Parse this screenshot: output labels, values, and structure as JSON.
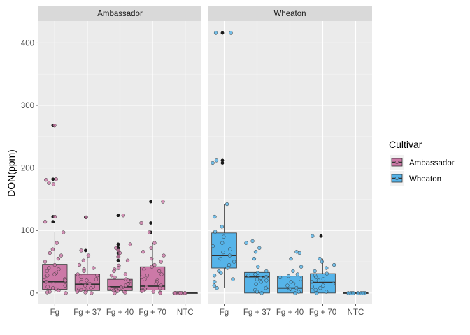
{
  "chart_data": {
    "type": "boxplot",
    "ylabel": "DON(ppm)",
    "xlabel": "",
    "ylim": [
      -18,
      435
    ],
    "yticks": [
      0,
      100,
      200,
      300,
      400
    ],
    "categories": [
      "Fg",
      "Fg + 37",
      "Fg + 40",
      "Fg + 70",
      "NTC"
    ],
    "legend": {
      "title": "Cultivar",
      "position": "right",
      "entries": [
        {
          "label": "Ambassador",
          "color": "#CC79A7"
        },
        {
          "label": "Wheaton",
          "color": "#56B4E9"
        }
      ]
    },
    "panels": [
      {
        "title": "Ambassador",
        "color": "#CC79A7",
        "boxes": [
          {
            "category": "Fg",
            "q1": 6,
            "median": 18,
            "q3": 46,
            "whisker_low": 0,
            "whisker_high": 98,
            "outliers": [
              268,
              268,
              182,
              182,
              122,
              122,
              114,
              114
            ],
            "points": [
              268,
              182,
              181,
              176,
              174,
              122,
              114,
              97,
              80,
              70,
              64,
              60,
              55,
              50,
              45,
              40,
              38,
              35,
              32,
              30,
              28,
              25,
              22,
              20,
              18,
              15,
              12,
              10,
              8,
              6,
              4,
              2,
              1,
              0
            ]
          },
          {
            "category": "Fg + 37",
            "q1": 4,
            "median": 14,
            "q3": 30,
            "whisker_low": 0,
            "whisker_high": 62,
            "outliers": [
              121,
              121,
              68,
              68
            ],
            "points": [
              121,
              68,
              60,
              52,
              45,
              40,
              38,
              35,
              30,
              28,
              25,
              22,
              20,
              18,
              15,
              12,
              10,
              8,
              6,
              5,
              4,
              3,
              2,
              1,
              0
            ]
          },
          {
            "category": "Fg + 40",
            "q1": 4,
            "median": 10,
            "q3": 22,
            "whisker_low": 0,
            "whisker_high": 44,
            "outliers": [
              124,
              124,
              78,
              78,
              72,
              72,
              68,
              68,
              64,
              64,
              58,
              58,
              52,
              52
            ],
            "points": [
              124,
              78,
              72,
              68,
              64,
              58,
              52,
              44,
              40,
              38,
              35,
              30,
              28,
              25,
              22,
              20,
              18,
              15,
              14,
              12,
              10,
              9,
              8,
              6,
              5,
              4,
              3,
              2,
              1,
              0
            ]
          },
          {
            "category": "Fg + 70",
            "q1": 5,
            "median": 11,
            "q3": 42,
            "whisker_low": 0,
            "whisker_high": 80,
            "outliers": [
              146,
              146,
              112,
              112,
              97,
              97
            ],
            "points": [
              146,
              112,
              97,
              80,
              72,
              66,
              60,
              55,
              50,
              45,
              42,
              38,
              35,
              30,
              28,
              25,
              22,
              20,
              18,
              15,
              12,
              10,
              8,
              6,
              5,
              4,
              3,
              2,
              1,
              0
            ]
          },
          {
            "category": "NTC",
            "q1": 0,
            "median": 0,
            "q3": 0,
            "whisker_low": 0,
            "whisker_high": 0,
            "outliers": [],
            "points": [
              0,
              0,
              0,
              0,
              0,
              0,
              0,
              0,
              0
            ]
          }
        ]
      },
      {
        "title": "Wheaton",
        "color": "#56B4E9",
        "boxes": [
          {
            "category": "Fg",
            "q1": 40,
            "median": 60,
            "q3": 96,
            "whisker_low": 8,
            "whisker_high": 142,
            "outliers": [
              416,
              416,
              212,
              212,
              208,
              208
            ],
            "points": [
              416,
              416,
              212,
              208,
              142,
              122,
              106,
              98,
              90,
              80,
              75,
              70,
              65,
              60,
              55,
              50,
              45,
              40,
              35,
              32,
              28,
              22,
              18,
              12,
              8
            ]
          },
          {
            "category": "Fg + 37",
            "q1": 0,
            "median": 26,
            "q3": 33,
            "whisker_low": 0,
            "whisker_high": 83,
            "outliers": [],
            "points": [
              83,
              80,
              72,
              66,
              55,
              42,
              35,
              32,
              30,
              28,
              26,
              24,
              22,
              20,
              18,
              14,
              10,
              8,
              5,
              2,
              0
            ]
          },
          {
            "category": "Fg + 40",
            "q1": 0,
            "median": 8,
            "q3": 27,
            "whisker_low": 0,
            "whisker_high": 66,
            "outliers": [],
            "points": [
              66,
              64,
              55,
              42,
              35,
              30,
              27,
              25,
              22,
              18,
              15,
              12,
              10,
              8,
              6,
              4,
              2,
              0
            ]
          },
          {
            "category": "Fg + 70",
            "q1": 0,
            "median": 17,
            "q3": 31,
            "whisker_low": 0,
            "whisker_high": 55,
            "outliers": [
              91,
              91
            ],
            "points": [
              91,
              55,
              50,
              45,
              40,
              35,
              31,
              28,
              25,
              22,
              20,
              18,
              15,
              12,
              10,
              8,
              5,
              2,
              0
            ]
          },
          {
            "category": "NTC",
            "q1": 0,
            "median": 0,
            "q3": 0,
            "whisker_low": 0,
            "whisker_high": 0,
            "outliers": [],
            "points": [
              0,
              0,
              0,
              0,
              0,
              0,
              0
            ]
          }
        ]
      }
    ]
  }
}
